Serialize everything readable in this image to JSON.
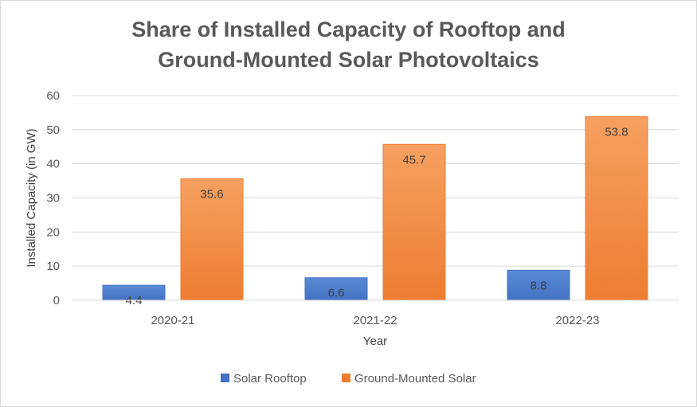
{
  "chart_data": {
    "type": "bar",
    "title": "Share of Installed Capacity of Rooftop and Ground-Mounted Solar Photovoltaics",
    "title_lines": [
      "Share of Installed Capacity of Rooftop and",
      "Ground-Mounted Solar Photovoltaics"
    ],
    "categories": [
      "2020-21",
      "2021-22",
      "2022-23"
    ],
    "series": [
      {
        "name": "Solar Rooftop",
        "values": [
          4.4,
          6.6,
          8.8
        ],
        "color": "#4472c4",
        "color_light": "#5a8ad6"
      },
      {
        "name": "Ground-Mounted Solar",
        "values": [
          35.6,
          45.7,
          53.8
        ],
        "color": "#ed7d31",
        "color_light": "#f6a060"
      }
    ],
    "xlabel": "Year",
    "ylabel": "Installed Capacity (in GW)",
    "ylim": [
      0,
      60
    ],
    "yticks": [
      0,
      10,
      20,
      30,
      40,
      50,
      60
    ],
    "grid": true,
    "legend_position": "bottom"
  }
}
